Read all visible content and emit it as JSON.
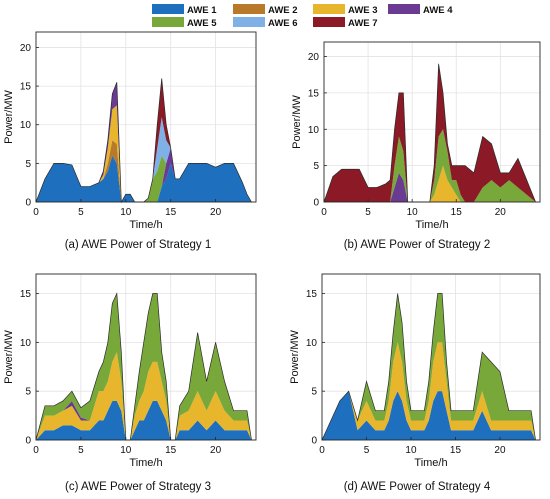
{
  "figure": {
    "legend": [
      {
        "label": "AWE 1",
        "color": "#1f6fbf"
      },
      {
        "label": "AWE 2",
        "color": "#b8792a"
      },
      {
        "label": "AWE 3",
        "color": "#e8b62c"
      },
      {
        "label": "AWE 4",
        "color": "#6b3a93"
      },
      {
        "label": "AWE 5",
        "color": "#78a83a"
      },
      {
        "label": "AWE 6",
        "color": "#7fb1e6"
      },
      {
        "label": "AWE 7",
        "color": "#8b1a26"
      }
    ]
  },
  "chart_data": [
    {
      "type": "area",
      "title": "(a) AWE Power of Strategy 1",
      "xlabel": "Time/h",
      "ylabel": "Power/MW",
      "xlim": [
        0,
        24.5
      ],
      "ylim": [
        0,
        22
      ],
      "xticks": [
        0,
        5,
        10,
        15,
        20
      ],
      "yticks": [
        0,
        5,
        10,
        15,
        20
      ],
      "grid": true,
      "x": [
        0,
        1,
        2,
        3,
        4,
        5,
        6,
        7,
        7.5,
        8,
        8.5,
        9,
        9.5,
        10,
        10.5,
        11,
        11.5,
        12,
        12.5,
        13,
        13.5,
        14,
        14.5,
        15,
        15.5,
        16,
        17,
        18,
        19,
        20,
        21,
        22,
        23,
        23.5,
        24
      ],
      "series": [
        {
          "name": "AWE 1",
          "values": [
            0,
            3,
            5,
            5,
            4.8,
            2,
            2,
            2.5,
            3,
            4,
            6,
            5,
            0,
            1,
            1,
            0,
            0,
            0,
            0,
            0,
            0,
            2,
            3,
            5,
            3,
            3,
            5,
            5,
            5,
            4.5,
            5,
            5,
            2.5,
            1,
            0
          ]
        },
        {
          "name": "AWE 2",
          "values": [
            0,
            0,
            0,
            0,
            0,
            0,
            0,
            0,
            0,
            1,
            2,
            2.5,
            0,
            0,
            0,
            0,
            0,
            0,
            0,
            0,
            0,
            0,
            0,
            0,
            0,
            0,
            0,
            0,
            0,
            0,
            0,
            0,
            0,
            0,
            0
          ]
        },
        {
          "name": "AWE 3",
          "values": [
            0,
            0,
            0,
            0,
            0,
            0,
            0,
            0,
            0.5,
            2,
            4,
            5,
            0,
            0,
            0,
            0,
            0,
            0,
            0,
            0,
            0,
            0,
            0,
            0,
            0,
            0,
            0,
            0,
            0,
            0,
            0,
            0,
            0,
            0,
            0
          ]
        },
        {
          "name": "AWE 4",
          "values": [
            0,
            0,
            0,
            0,
            0,
            0,
            0,
            0,
            0.5,
            1,
            2,
            3,
            0,
            0,
            0,
            0,
            0,
            0,
            0,
            0,
            0,
            0,
            2,
            2,
            0,
            0,
            0,
            0,
            0,
            0,
            0,
            0,
            0,
            0,
            0
          ]
        },
        {
          "name": "AWE 5",
          "values": [
            0,
            0,
            0,
            0,
            0,
            0,
            0,
            0,
            0,
            0,
            0,
            0,
            0,
            0,
            0,
            0,
            0,
            0,
            0.5,
            3,
            4,
            4,
            0,
            0,
            0,
            0,
            0,
            0,
            0,
            0,
            0,
            0,
            0,
            0,
            0
          ]
        },
        {
          "name": "AWE 6",
          "values": [
            0,
            0,
            0,
            0,
            0,
            0,
            0,
            0,
            0,
            0,
            0,
            0,
            0,
            0,
            0,
            0,
            0,
            0,
            0,
            0,
            3,
            5,
            3,
            0,
            0,
            0,
            0,
            0,
            0,
            0,
            0,
            0,
            0,
            0,
            0
          ]
        },
        {
          "name": "AWE 7",
          "values": [
            0,
            0,
            0,
            0,
            0,
            0,
            0,
            0,
            0,
            0,
            0,
            0,
            0,
            0,
            0,
            0,
            0,
            0,
            0,
            0,
            3,
            5,
            2,
            0,
            0,
            0,
            0,
            0,
            0,
            0,
            0,
            0,
            0,
            0,
            0
          ]
        }
      ]
    },
    {
      "type": "area",
      "title": "(b) AWE Power of Strategy 2",
      "xlabel": "Time/h",
      "ylabel": "Power/MW",
      "xlim": [
        0,
        24.5
      ],
      "ylim": [
        0,
        22
      ],
      "xticks": [
        0,
        5,
        10,
        15,
        20
      ],
      "yticks": [
        0,
        5,
        10,
        15,
        20
      ],
      "grid": true,
      "x": [
        0,
        1,
        2,
        3,
        4,
        5,
        6,
        7,
        7.5,
        8,
        8.5,
        9,
        9.5,
        10,
        10.5,
        11,
        11.5,
        12,
        12.5,
        13,
        13.5,
        14,
        14.5,
        15,
        15.5,
        16,
        17,
        18,
        19,
        20,
        21,
        22,
        23,
        23.5,
        24
      ],
      "series": [
        {
          "name": "AWE 3",
          "values": [
            0,
            0,
            0,
            0,
            0,
            0,
            0,
            0,
            0,
            0,
            0,
            0,
            0,
            0,
            0,
            0,
            0,
            0,
            1,
            3,
            5,
            3,
            2,
            1,
            0,
            0,
            0,
            0,
            0,
            0,
            0,
            0,
            0,
            0,
            0
          ]
        },
        {
          "name": "AWE 4",
          "values": [
            0,
            0,
            0,
            0,
            0,
            0,
            0,
            0,
            0,
            2,
            4,
            3,
            0,
            0,
            0,
            0,
            0,
            0,
            0,
            0,
            0,
            0,
            0,
            0,
            0,
            0,
            0,
            0,
            0,
            0,
            0,
            0,
            0,
            0,
            0
          ]
        },
        {
          "name": "AWE 5",
          "values": [
            0,
            0,
            0,
            0,
            0,
            0,
            0,
            0,
            0,
            3,
            5,
            4,
            0,
            0,
            0,
            0,
            0,
            0,
            2,
            6,
            5,
            4,
            1,
            2,
            1,
            0,
            0,
            2,
            3,
            2,
            3,
            2,
            1,
            0.5,
            0
          ]
        },
        {
          "name": "AWE 7",
          "values": [
            0,
            3.5,
            4.5,
            4.5,
            4.5,
            2,
            2,
            2.5,
            3,
            5,
            6,
            8,
            0,
            0,
            0,
            0,
            0,
            0,
            2,
            10,
            5,
            1,
            2,
            2,
            4,
            5,
            4,
            7,
            5,
            2,
            1,
            4,
            2,
            1,
            0
          ]
        }
      ]
    },
    {
      "type": "area",
      "title": "(c) AWE Power of Strategy 3",
      "xlabel": "Time/h",
      "ylabel": "Power/MW",
      "xlim": [
        0,
        24.5
      ],
      "ylim": [
        0,
        17
      ],
      "xticks": [
        0,
        5,
        10,
        15,
        20
      ],
      "yticks": [
        0,
        5,
        10,
        15
      ],
      "grid": true,
      "x": [
        0,
        1,
        2,
        3,
        4,
        5,
        6,
        7,
        7.5,
        8,
        8.5,
        9,
        9.5,
        10,
        10.5,
        11,
        11.5,
        12,
        12.5,
        13,
        13.5,
        14,
        14.5,
        15,
        15.5,
        16,
        17,
        18,
        19,
        20,
        21,
        22,
        23,
        23.5,
        24
      ],
      "series": [
        {
          "name": "AWE 1",
          "values": [
            0,
            1,
            1,
            1.5,
            1.5,
            1,
            1,
            2,
            2,
            3,
            4,
            4,
            3,
            0,
            0,
            1,
            2,
            2,
            3,
            4,
            4,
            3,
            2,
            0,
            0,
            1,
            1,
            2,
            1,
            2,
            1,
            1,
            1,
            1,
            0
          ]
        },
        {
          "name": "AWE 3",
          "values": [
            0,
            1.5,
            1.5,
            1.5,
            2,
            1,
            1,
            3,
            3,
            3,
            4,
            5,
            3,
            0,
            0,
            1.5,
            2,
            3,
            4,
            4,
            4,
            3,
            2,
            0,
            0,
            1.5,
            2,
            3,
            2,
            3,
            2,
            1,
            1,
            1,
            0
          ]
        },
        {
          "name": "AWE 4",
          "values": [
            0,
            0,
            0,
            0,
            0.5,
            0.3,
            0,
            0,
            0,
            0,
            0,
            0,
            0,
            0,
            0,
            0,
            0,
            0,
            0,
            0,
            0,
            0,
            0,
            0,
            0,
            0,
            0,
            0,
            0,
            0,
            0,
            0,
            0,
            0,
            0
          ]
        },
        {
          "name": "AWE 5",
          "values": [
            0,
            1,
            1,
            1,
            1,
            1,
            2,
            2,
            3,
            4,
            6,
            6,
            3,
            0,
            0,
            1,
            3,
            5,
            6,
            7,
            7,
            3,
            2,
            0,
            0,
            1,
            2,
            6,
            3,
            5,
            3,
            1,
            1,
            1,
            0
          ]
        }
      ]
    },
    {
      "type": "area",
      "title": "(d) AWE Power of Strategy 4",
      "xlabel": "Time/h",
      "ylabel": "Power/MW",
      "xlim": [
        0,
        24.5
      ],
      "ylim": [
        0,
        17
      ],
      "xticks": [
        0,
        5,
        10,
        15,
        20
      ],
      "yticks": [
        0,
        5,
        10,
        15
      ],
      "grid": true,
      "x": [
        0,
        1,
        2,
        3,
        4,
        5,
        6,
        7,
        7.5,
        8,
        8.5,
        9,
        9.5,
        10,
        10.5,
        11,
        11.5,
        12,
        12.5,
        13,
        13.5,
        14,
        14.5,
        15,
        15.5,
        16,
        17,
        18,
        19,
        20,
        21,
        22,
        23,
        23.5,
        24
      ],
      "series": [
        {
          "name": "AWE 1",
          "values": [
            0,
            2,
            4,
            5,
            1,
            2,
            1,
            1,
            2,
            4,
            5,
            4,
            2,
            1,
            1,
            1,
            1,
            2,
            4,
            5,
            5,
            3,
            1,
            1,
            1,
            1,
            1,
            3,
            1,
            1,
            1,
            1,
            1,
            1,
            0
          ]
        },
        {
          "name": "AWE 3",
          "values": [
            0,
            0,
            0,
            0,
            1,
            2,
            1,
            1,
            2,
            4,
            5,
            4,
            2,
            1,
            1,
            1,
            1,
            2,
            4,
            5,
            5,
            3,
            1,
            1,
            1,
            1,
            1,
            2,
            1,
            1,
            1,
            1,
            1,
            1,
            0
          ]
        },
        {
          "name": "AWE 5",
          "values": [
            0,
            0,
            0,
            0,
            0,
            2,
            1,
            1,
            2,
            3,
            5,
            4,
            2,
            1,
            1,
            1,
            1,
            2,
            3,
            5,
            5,
            2,
            1,
            1,
            1,
            1,
            1,
            4,
            6,
            5,
            1,
            1,
            1,
            1,
            0
          ]
        }
      ]
    }
  ]
}
